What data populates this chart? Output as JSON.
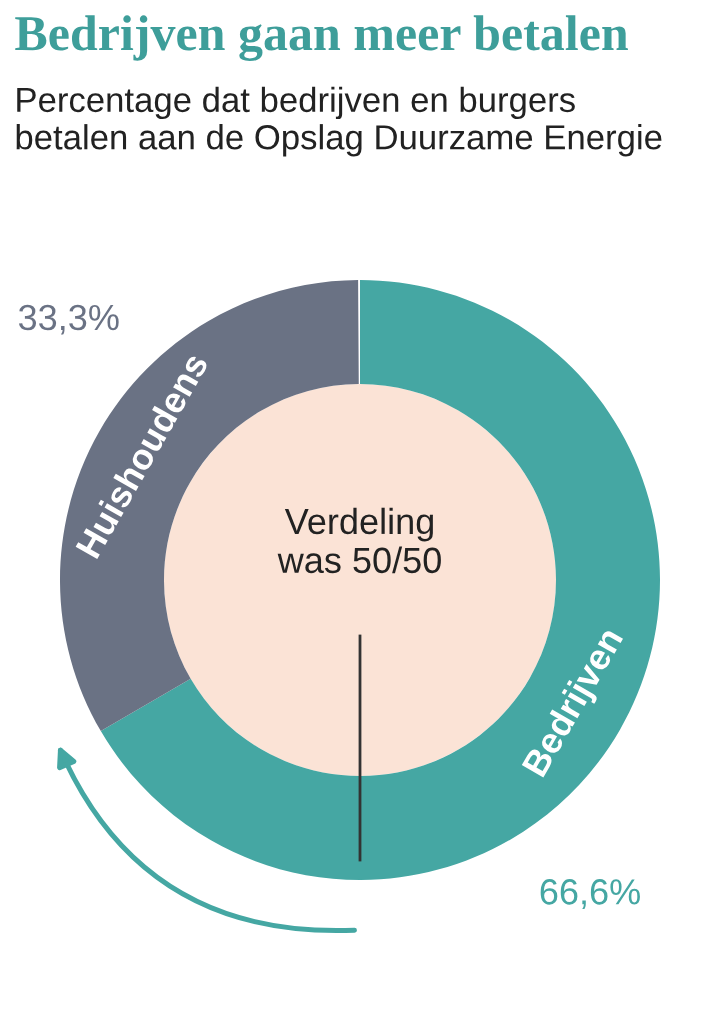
{
  "chart_data": {
    "type": "donut",
    "title": "Bedrijven gaan meer betalen",
    "subtitle": "Percentage dat bedrijven en burgers betalen aan de Opslag Duurzame Energie",
    "categories": [
      "Bedrijven",
      "Huishoudens"
    ],
    "values": [
      66.6,
      33.3
    ],
    "colors": [
      "#45a7a3",
      "#6a7284"
    ],
    "value_labels": [
      "66,6%",
      "33,3%"
    ],
    "annotations": [
      "Verdeling was 50/50"
    ]
  }
}
